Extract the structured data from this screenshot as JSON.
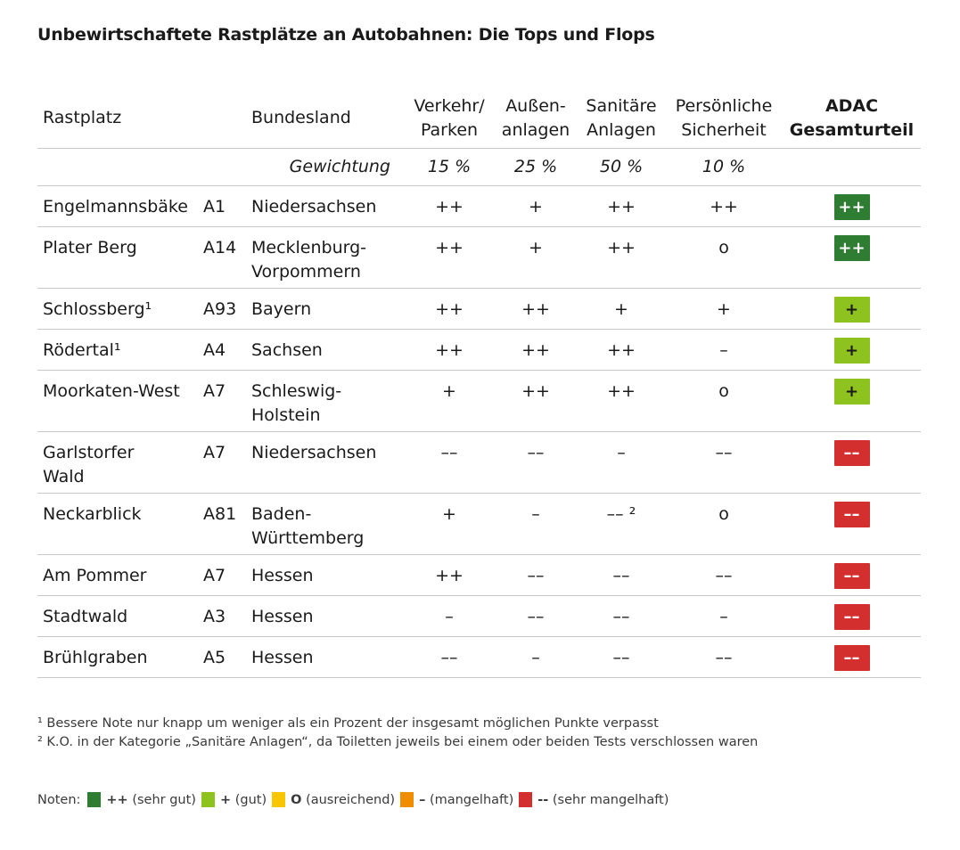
{
  "title": "Unbewirtschaftete Rastplätze an Autobahnen: Die Tops und Flops",
  "headers": {
    "rastplatz": "Rastplatz",
    "bundesland": "Bundesland",
    "verkehr_1": "Verkehr/",
    "verkehr_2": "Parken",
    "aussen_1": "Außen-",
    "aussen_2": "anlagen",
    "sanitaer_1": "Sanitäre",
    "sanitaer_2": "Anlagen",
    "sicherheit_1": "Persönliche",
    "sicherheit_2": "Sicherheit",
    "gesamt_1": "ADAC",
    "gesamt_2": "Gesamturteil"
  },
  "weighting": {
    "label": "Gewichtung",
    "verkehr": "15 %",
    "aussen": "25 %",
    "sanitaer": "50 %",
    "sicherheit": "10 %"
  },
  "colors": {
    "sehr_gut": "#2e7d32",
    "gut": "#8dc21f",
    "ausreichend": "#f7c600",
    "mangelhaft": "#f08c00",
    "sehr_mangelhaft": "#d32f2f"
  },
  "rows": [
    {
      "name_1": "Engelmannsbäke",
      "name_2": "",
      "autobahn": "A1",
      "land_1": "Niedersachsen",
      "land_2": "",
      "verkehr": "++",
      "aussen": "+",
      "sanitaer": "++",
      "sicherheit": "++",
      "gesamt": "++",
      "gesamt_color": "#2e7d32"
    },
    {
      "name_1": "Plater Berg",
      "name_2": "",
      "autobahn": "A14",
      "land_1": "Mecklenburg-",
      "land_2": "Vorpommern",
      "verkehr": "++",
      "aussen": "+",
      "sanitaer": "++",
      "sicherheit": "o",
      "gesamt": "++",
      "gesamt_color": "#2e7d32"
    },
    {
      "name_1": "Schlossberg¹",
      "name_2": "",
      "autobahn": "A93",
      "land_1": "Bayern",
      "land_2": "",
      "verkehr": "++",
      "aussen": "++",
      "sanitaer": "+",
      "sicherheit": "+",
      "gesamt": "+",
      "gesamt_color": "#8dc21f"
    },
    {
      "name_1": "Rödertal¹",
      "name_2": "",
      "autobahn": "A4",
      "land_1": "Sachsen",
      "land_2": "",
      "verkehr": "++",
      "aussen": "++",
      "sanitaer": "++",
      "sicherheit": "–",
      "gesamt": "+",
      "gesamt_color": "#8dc21f"
    },
    {
      "name_1": "Moorkaten-West",
      "name_2": "",
      "autobahn": "A7",
      "land_1": "Schleswig-",
      "land_2": "Holstein",
      "verkehr": "+",
      "aussen": "++",
      "sanitaer": "++",
      "sicherheit": "o",
      "gesamt": "+",
      "gesamt_color": "#8dc21f"
    },
    {
      "name_1": "Garlstorfer",
      "name_2": "Wald",
      "autobahn": "A7",
      "land_1": "Niedersachsen",
      "land_2": "",
      "verkehr": "––",
      "aussen": "––",
      "sanitaer": "–",
      "sicherheit": "––",
      "gesamt": "––",
      "gesamt_color": "#d32f2f"
    },
    {
      "name_1": "Neckarblick",
      "name_2": "",
      "autobahn": "A81",
      "land_1": "Baden-",
      "land_2": "Württemberg",
      "verkehr": "+",
      "aussen": "–",
      "sanitaer": "–– ²",
      "sicherheit": "o",
      "gesamt": "––",
      "gesamt_color": "#d32f2f"
    },
    {
      "name_1": "Am Pommer",
      "name_2": "",
      "autobahn": "A7",
      "land_1": "Hessen",
      "land_2": "",
      "verkehr": "++",
      "aussen": "––",
      "sanitaer": "––",
      "sicherheit": "––",
      "gesamt": "––",
      "gesamt_color": "#d32f2f"
    },
    {
      "name_1": "Stadtwald",
      "name_2": "",
      "autobahn": "A3",
      "land_1": "Hessen",
      "land_2": "",
      "verkehr": "–",
      "aussen": "––",
      "sanitaer": "––",
      "sicherheit": "–",
      "gesamt": "––",
      "gesamt_color": "#d32f2f"
    },
    {
      "name_1": "Brühlgraben",
      "name_2": "",
      "autobahn": "A5",
      "land_1": "Hessen",
      "land_2": "",
      "verkehr": "––",
      "aussen": "–",
      "sanitaer": "––",
      "sicherheit": "––",
      "gesamt": "––",
      "gesamt_color": "#d32f2f"
    }
  ],
  "footnotes": [
    "¹ Bessere Note nur knapp um weniger als ein Prozent der insgesamt möglichen Punkte verpasst",
    "² K.O. in der Kategorie „Sanitäre Anlagen“, da Toiletten jeweils bei einem oder beiden Tests verschlossen waren"
  ],
  "legend": {
    "label": "Noten:",
    "items": [
      {
        "symbol": "++",
        "text": " (sehr gut)",
        "color": "#2e7d32"
      },
      {
        "symbol": "+",
        "text": " (gut)",
        "color": "#8dc21f"
      },
      {
        "symbol": "O",
        "text": " (ausreichend)",
        "color": "#f7c600"
      },
      {
        "symbol": "–",
        "text": " (mangelhaft)",
        "color": "#f08c00"
      },
      {
        "symbol": "--",
        "text": " (sehr mangelhaft)",
        "color": "#d32f2f"
      }
    ]
  }
}
